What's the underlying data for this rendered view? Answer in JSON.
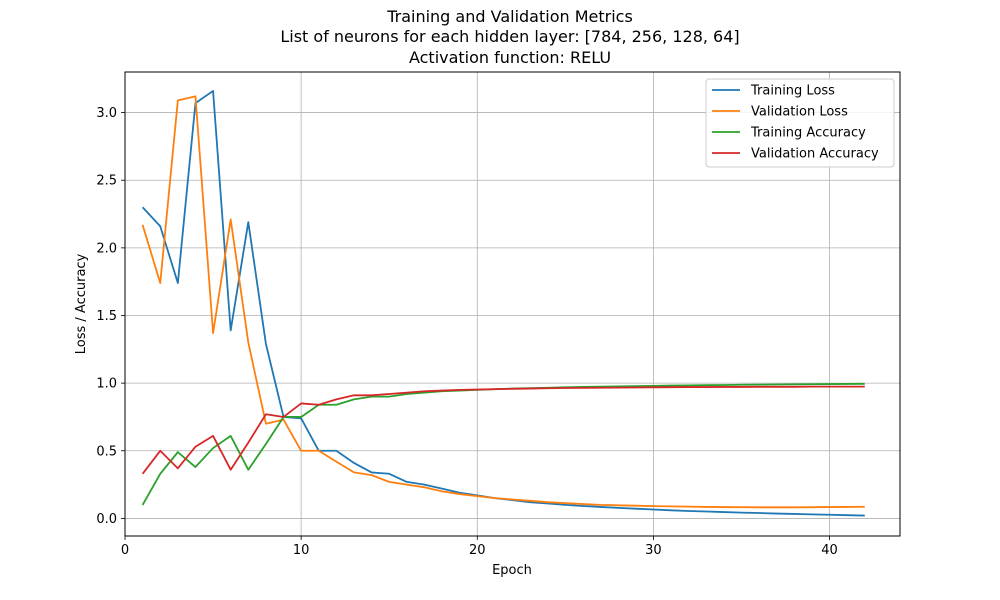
{
  "chart_data": {
    "type": "line",
    "title": "Training and Validation Metrics",
    "subtitle_lines": [
      "List of neurons for each hidden layer: [784, 256, 128, 64]",
      "Activation function: RELU"
    ],
    "xlabel": "Epoch",
    "ylabel": "Loss / Accuracy",
    "xlim": [
      0,
      44
    ],
    "ylim": [
      -0.13,
      3.3
    ],
    "xticks": [
      0,
      10,
      20,
      30,
      40
    ],
    "xtick_labels": [
      "0",
      "10",
      "20",
      "30",
      "40"
    ],
    "yticks": [
      0.0,
      0.5,
      1.0,
      1.5,
      2.0,
      2.5,
      3.0
    ],
    "ytick_labels": [
      "0.0",
      "0.5",
      "1.0",
      "1.5",
      "2.0",
      "2.5",
      "3.0"
    ],
    "grid": true,
    "legend_position": "top-right",
    "x": [
      1,
      2,
      3,
      4,
      5,
      6,
      7,
      8,
      9,
      10,
      11,
      12,
      13,
      14,
      15,
      16,
      17,
      18,
      19,
      20,
      21,
      22,
      23,
      24,
      25,
      26,
      27,
      28,
      29,
      30,
      31,
      32,
      33,
      34,
      35,
      36,
      37,
      38,
      39,
      40,
      41,
      42
    ],
    "series": [
      {
        "name": "Training Loss",
        "color": "#1f77b4",
        "values": [
          2.3,
          2.16,
          1.74,
          3.07,
          3.16,
          1.39,
          2.19,
          1.29,
          0.75,
          0.74,
          0.5,
          0.5,
          0.41,
          0.34,
          0.33,
          0.27,
          0.25,
          0.22,
          0.19,
          0.17,
          0.15,
          0.135,
          0.12,
          0.11,
          0.1,
          0.092,
          0.085,
          0.078,
          0.072,
          0.066,
          0.06,
          0.055,
          0.051,
          0.047,
          0.043,
          0.04,
          0.036,
          0.033,
          0.03,
          0.027,
          0.024,
          0.021
        ]
      },
      {
        "name": "Validation Loss",
        "color": "#ff7f0e",
        "values": [
          2.17,
          1.74,
          3.09,
          3.12,
          1.37,
          2.21,
          1.3,
          0.7,
          0.73,
          0.5,
          0.5,
          0.42,
          0.34,
          0.32,
          0.27,
          0.25,
          0.23,
          0.2,
          0.18,
          0.165,
          0.15,
          0.14,
          0.13,
          0.12,
          0.113,
          0.106,
          0.1,
          0.097,
          0.094,
          0.091,
          0.089,
          0.087,
          0.085,
          0.084,
          0.083,
          0.082,
          0.082,
          0.082,
          0.083,
          0.084,
          0.085,
          0.086
        ]
      },
      {
        "name": "Training Accuracy",
        "color": "#2ca02c",
        "values": [
          0.1,
          0.33,
          0.49,
          0.38,
          0.52,
          0.61,
          0.36,
          0.55,
          0.75,
          0.75,
          0.84,
          0.84,
          0.88,
          0.9,
          0.9,
          0.92,
          0.93,
          0.94,
          0.945,
          0.95,
          0.955,
          0.96,
          0.963,
          0.966,
          0.969,
          0.972,
          0.974,
          0.976,
          0.978,
          0.98,
          0.982,
          0.983,
          0.985,
          0.986,
          0.988,
          0.989,
          0.99,
          0.991,
          0.992,
          0.993,
          0.994,
          0.995
        ]
      },
      {
        "name": "Validation Accuracy",
        "color": "#d62728",
        "values": [
          0.33,
          0.5,
          0.37,
          0.53,
          0.61,
          0.36,
          0.56,
          0.77,
          0.75,
          0.85,
          0.84,
          0.88,
          0.91,
          0.91,
          0.92,
          0.93,
          0.94,
          0.945,
          0.95,
          0.953,
          0.956,
          0.958,
          0.96,
          0.962,
          0.964,
          0.965,
          0.966,
          0.967,
          0.968,
          0.969,
          0.97,
          0.971,
          0.971,
          0.972,
          0.972,
          0.973,
          0.973,
          0.973,
          0.974,
          0.974,
          0.974,
          0.974
        ]
      }
    ]
  }
}
